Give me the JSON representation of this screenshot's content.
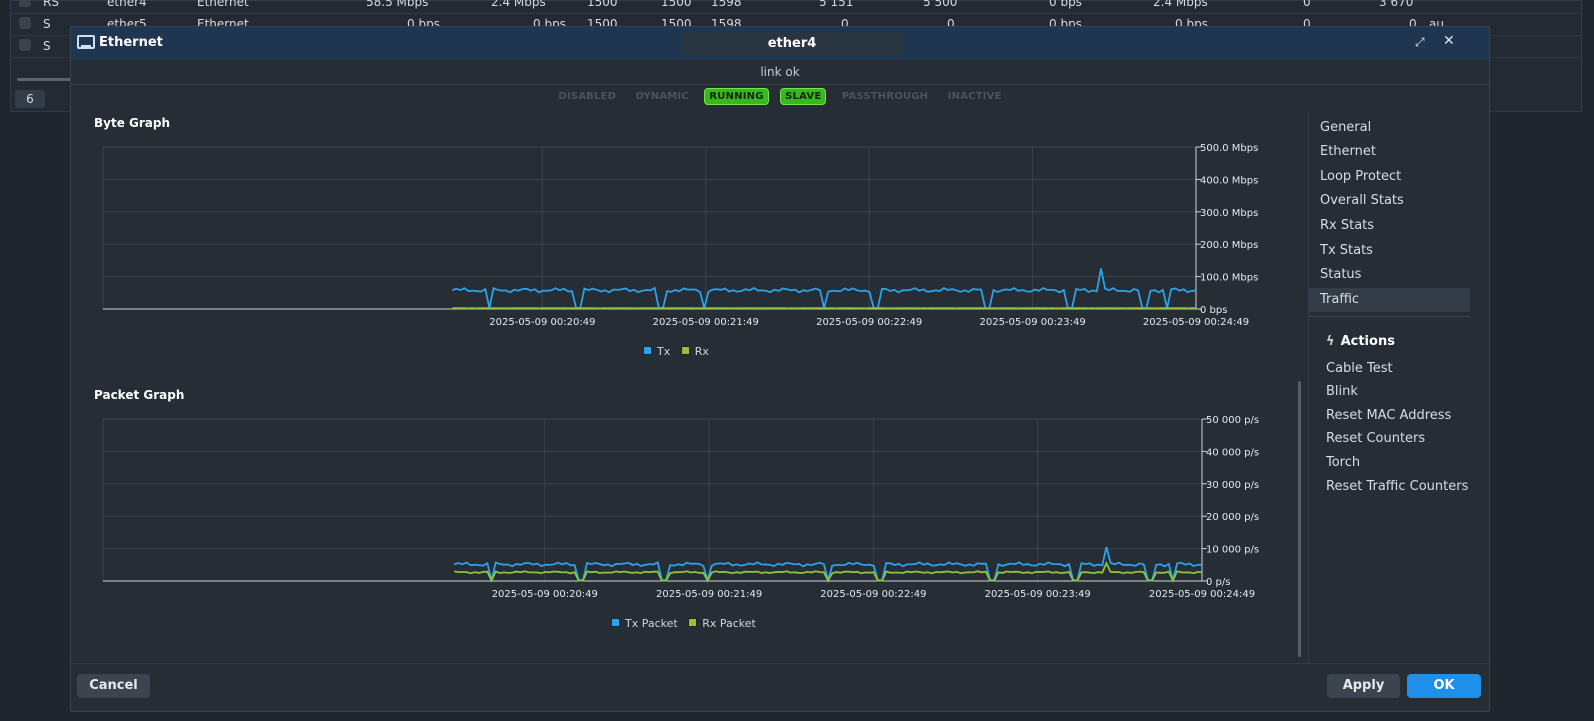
{
  "background_table": {
    "rows": [
      {
        "flag": "RS",
        "name": "ether4",
        "type": "Ethernet",
        "tx": "58.5 Mbps",
        "rx": "2.4 Mbps",
        "mtu": "1500",
        "actual_mtu": "1500",
        "l2mtu": "1598",
        "tx_packet": "5 151",
        "rx_packet": "5 500",
        "fp_tx": "0 bps",
        "fp_rx": "2.4 Mbps",
        "fp_tx_packet": "0",
        "fp_rx_packet": "3 670",
        "extra": ""
      },
      {
        "flag": "S",
        "name": "ether5",
        "type": "Ethernet",
        "tx": "0 bps",
        "rx": "0 bps",
        "mtu": "1500",
        "actual_mtu": "1500",
        "l2mtu": "1598",
        "tx_packet": "0",
        "rx_packet": "0",
        "fp_tx": "0 bps",
        "fp_rx": "0 bps",
        "fp_tx_packet": "0",
        "fp_rx_packet": "0",
        "extra": "au"
      },
      {
        "flag": "S",
        "name": "",
        "type": "",
        "tx": "",
        "rx": "",
        "mtu": "",
        "actual_mtu": "",
        "l2mtu": "",
        "tx_packet": "",
        "rx_packet": "",
        "fp_tx": "",
        "fp_rx": "",
        "fp_tx_packet": "",
        "fp_rx_packet": "",
        "extra": ""
      }
    ],
    "count": "6"
  },
  "dialog": {
    "title": "Ethernet",
    "name_value": "ether4",
    "status": "link ok",
    "flags": [
      {
        "label": "DISABLED",
        "active": false
      },
      {
        "label": "DYNAMIC",
        "active": false
      },
      {
        "label": "RUNNING",
        "active": true
      },
      {
        "label": "SLAVE",
        "active": true
      },
      {
        "label": "PASSTHROUGH",
        "active": false
      },
      {
        "label": "INACTIVE",
        "active": false
      }
    ],
    "buttons": {
      "restore": "⤢",
      "close": "✕"
    }
  },
  "byte_graph": {
    "title": "Byte Graph"
  },
  "packet_graph": {
    "title": "Packet Graph"
  },
  "chart_data": [
    {
      "type": "line",
      "title": "Byte Graph",
      "x_tick_labels": [
        "2025-05-09 00:20:49",
        "2025-05-09 00:21:49",
        "2025-05-09 00:22:49",
        "2025-05-09 00:23:49",
        "2025-05-09 00:24:49"
      ],
      "y_tick_labels": [
        "0 bps",
        "100.0 Mbps",
        "200.0 Mbps",
        "300.0 Mbps",
        "400.0 Mbps",
        "500.0 Mbps"
      ],
      "ylim_mbps": [
        0,
        500
      ],
      "grid": true,
      "legend_position": "bottom",
      "series": [
        {
          "name": "Tx",
          "color": "#2aa3e8",
          "level_mbps": 58,
          "dips": [
            0.05,
            0.17,
            0.28,
            0.34,
            0.5,
            0.57,
            0.72,
            0.83,
            0.93,
            0.96
          ],
          "spike_at": 0.87,
          "spike_mbps": 125
        },
        {
          "name": "Rx",
          "color": "#8fc43a",
          "level_mbps": 2.4
        }
      ]
    },
    {
      "type": "line",
      "title": "Packet Graph",
      "x_tick_labels": [
        "2025-05-09 00:20:49",
        "2025-05-09 00:21:49",
        "2025-05-09 00:22:49",
        "2025-05-09 00:23:49",
        "2025-05-09 00:24:49"
      ],
      "y_tick_labels": [
        "0 p/s",
        "10 000 p/s",
        "20 000 p/s",
        "30 000 p/s",
        "40 000 p/s",
        "50 000 p/s"
      ],
      "ylim_pps": [
        0,
        50000
      ],
      "grid": true,
      "legend_position": "bottom",
      "series": [
        {
          "name": "Tx Packet",
          "color": "#2aa3e8",
          "level_pps": 5150,
          "dips": [
            0.05,
            0.17,
            0.28,
            0.34,
            0.5,
            0.57,
            0.72,
            0.83,
            0.93,
            0.96
          ],
          "spike_at": 0.87,
          "spike_pps": 10500
        },
        {
          "name": "Rx Packet",
          "color": "#8fc43a",
          "level_pps": 2700,
          "dips": [
            0.05,
            0.17,
            0.28,
            0.34,
            0.5,
            0.57,
            0.72,
            0.83,
            0.93,
            0.96
          ],
          "spike_at": 0.87,
          "spike_pps": 5500
        }
      ]
    }
  ],
  "side_nav": {
    "items": [
      "General",
      "Ethernet",
      "Loop Protect",
      "Overall Stats",
      "Rx Stats",
      "Tx Stats",
      "Status",
      "Traffic"
    ],
    "active": "Traffic"
  },
  "actions": {
    "title": "Actions",
    "items": [
      "Cable Test",
      "Blink",
      "Reset MAC Address",
      "Reset Counters",
      "Torch",
      "Reset Traffic Counters"
    ]
  },
  "footer": {
    "cancel": "Cancel",
    "apply": "Apply",
    "ok": "OK"
  }
}
